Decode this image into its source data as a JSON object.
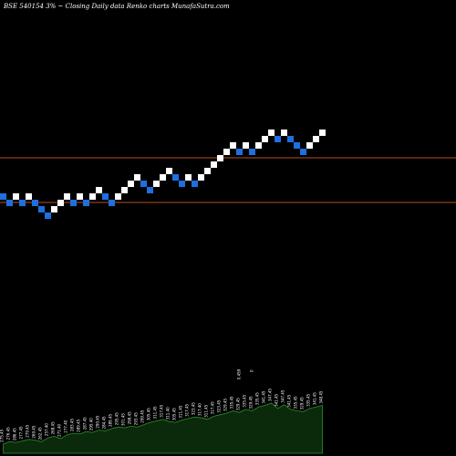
{
  "chart_data": {
    "type": "renko",
    "title": "BSE 540154  3% ~  Closing Daily data  Renko  charts MunafaSutra.com",
    "colors": {
      "background": "#000000",
      "up_brick": "#ffffff",
      "down_brick": "#1e6fe0",
      "reference_line": "#b5511f",
      "volume_fill": "#0b2a0b",
      "volume_outline": "#2f8f2f",
      "text": "#ffffff"
    },
    "reference_lines": [
      24.0,
      17.0
    ],
    "bricks": [
      {
        "level": 18,
        "dir": "down"
      },
      {
        "level": 17,
        "dir": "down"
      },
      {
        "level": 18,
        "dir": "up"
      },
      {
        "level": 17,
        "dir": "down"
      },
      {
        "level": 18,
        "dir": "up"
      },
      {
        "level": 17,
        "dir": "down"
      },
      {
        "level": 16,
        "dir": "down"
      },
      {
        "level": 15,
        "dir": "down"
      },
      {
        "level": 16,
        "dir": "up"
      },
      {
        "level": 17,
        "dir": "up"
      },
      {
        "level": 18,
        "dir": "up"
      },
      {
        "level": 17,
        "dir": "down"
      },
      {
        "level": 18,
        "dir": "up"
      },
      {
        "level": 17,
        "dir": "down"
      },
      {
        "level": 18,
        "dir": "up"
      },
      {
        "level": 19,
        "dir": "up"
      },
      {
        "level": 18,
        "dir": "down"
      },
      {
        "level": 17,
        "dir": "down"
      },
      {
        "level": 18,
        "dir": "up"
      },
      {
        "level": 19,
        "dir": "up"
      },
      {
        "level": 20,
        "dir": "up"
      },
      {
        "level": 21,
        "dir": "up"
      },
      {
        "level": 20,
        "dir": "down"
      },
      {
        "level": 19,
        "dir": "down"
      },
      {
        "level": 20,
        "dir": "up"
      },
      {
        "level": 21,
        "dir": "up"
      },
      {
        "level": 22,
        "dir": "up"
      },
      {
        "level": 21,
        "dir": "down"
      },
      {
        "level": 20,
        "dir": "down"
      },
      {
        "level": 21,
        "dir": "up"
      },
      {
        "level": 20,
        "dir": "down"
      },
      {
        "level": 21,
        "dir": "up"
      },
      {
        "level": 22,
        "dir": "up"
      },
      {
        "level": 23,
        "dir": "up"
      },
      {
        "level": 24,
        "dir": "up"
      },
      {
        "level": 25,
        "dir": "up"
      },
      {
        "level": 26,
        "dir": "up"
      },
      {
        "level": 25,
        "dir": "down"
      },
      {
        "level": 26,
        "dir": "up"
      },
      {
        "level": 25,
        "dir": "down"
      },
      {
        "level": 26,
        "dir": "up"
      },
      {
        "level": 27,
        "dir": "up"
      },
      {
        "level": 28,
        "dir": "up"
      },
      {
        "level": 27,
        "dir": "down"
      },
      {
        "level": 28,
        "dir": "up"
      },
      {
        "level": 27,
        "dir": "down"
      },
      {
        "level": 26,
        "dir": "down"
      },
      {
        "level": 25,
        "dir": "down"
      },
      {
        "level": 26,
        "dir": "up"
      },
      {
        "level": 27,
        "dir": "up"
      },
      {
        "level": 28,
        "dir": "up"
      }
    ],
    "volume": [
      {
        "value": 12,
        "label": "275.45"
      },
      {
        "value": 15,
        "label": "276.45"
      },
      {
        "value": 14,
        "label": "286.45"
      },
      {
        "value": 16,
        "label": "277.45"
      },
      {
        "value": 18,
        "label": "279.45"
      },
      {
        "value": 17,
        "label": "269.45"
      },
      {
        "value": 15,
        "label": "262.45"
      },
      {
        "value": 20,
        "label": "257.40"
      },
      {
        "value": 22,
        "label": "268.45"
      },
      {
        "value": 19,
        "label": "271.40"
      },
      {
        "value": 24,
        "label": "277.40"
      },
      {
        "value": 26,
        "label": "283.45"
      },
      {
        "value": 25,
        "label": "289.45"
      },
      {
        "value": 28,
        "label": "287.45"
      },
      {
        "value": 27,
        "label": "295.40"
      },
      {
        "value": 30,
        "label": "290.45"
      },
      {
        "value": 29,
        "label": "284.45"
      },
      {
        "value": 32,
        "label": "289.45"
      },
      {
        "value": 34,
        "label": "295.45"
      },
      {
        "value": 33,
        "label": "301.45"
      },
      {
        "value": 35,
        "label": "298.45"
      },
      {
        "value": 34,
        "label": "293.45"
      },
      {
        "value": 37,
        "label": "299.45"
      },
      {
        "value": 40,
        "label": "305.45"
      },
      {
        "value": 42,
        "label": "311.45"
      },
      {
        "value": 44,
        "label": "317.45"
      },
      {
        "value": 41,
        "label": "311.40"
      },
      {
        "value": 40,
        "label": "305.45"
      },
      {
        "value": 43,
        "label": "311.45"
      },
      {
        "value": 45,
        "label": "317.45"
      },
      {
        "value": 47,
        "label": "323.45"
      },
      {
        "value": 46,
        "label": "317.40"
      },
      {
        "value": 44,
        "label": "311.45"
      },
      {
        "value": 48,
        "label": "317.45"
      },
      {
        "value": 50,
        "label": "323.45"
      },
      {
        "value": 52,
        "label": "329.45"
      },
      {
        "value": 55,
        "label": "335.45"
      },
      {
        "value": 53,
        "label": "329.45"
      },
      {
        "value": 57,
        "label": "335.45"
      },
      {
        "value": 55,
        "label": "329.45"
      },
      {
        "value": 60,
        "label": "335.45"
      },
      {
        "value": 62,
        "label": "341.45"
      },
      {
        "value": 65,
        "label": "347.45"
      },
      {
        "value": 58,
        "label": "341.45"
      },
      {
        "value": 63,
        "label": "347.45"
      },
      {
        "value": 57,
        "label": "341.45"
      },
      {
        "value": 55,
        "label": "335.45"
      },
      {
        "value": 54,
        "label": "329.45"
      },
      {
        "value": 58,
        "label": "335.45"
      },
      {
        "value": 60,
        "label": "341.45"
      },
      {
        "value": 62,
        "label": "348.45"
      }
    ],
    "volume_peak_labels": [
      "0.459",
      "0"
    ]
  }
}
